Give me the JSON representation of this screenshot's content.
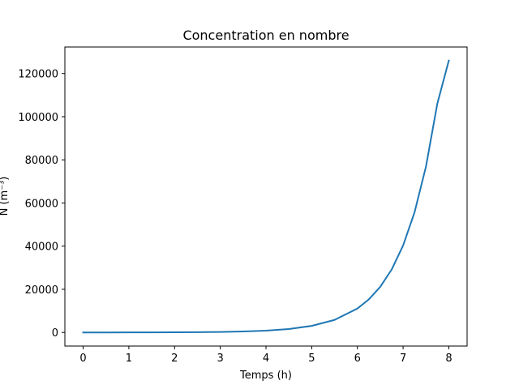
{
  "chart_data": {
    "type": "line",
    "title": "Concentration en nombre",
    "xlabel": "Temps (h)",
    "ylabel": "N (m⁻³)",
    "xlim": [
      -0.4,
      8.4
    ],
    "ylim": [
      -6300,
      132300
    ],
    "xticks": [
      0,
      1,
      2,
      3,
      4,
      5,
      6,
      7,
      8
    ],
    "xtick_labels": [
      "0",
      "1",
      "2",
      "3",
      "4",
      "5",
      "6",
      "7",
      "8"
    ],
    "yticks": [
      0,
      20000,
      40000,
      60000,
      80000,
      100000,
      120000
    ],
    "ytick_labels": [
      "0",
      "20000",
      "40000",
      "60000",
      "80000",
      "100000",
      "120000"
    ],
    "grid": false,
    "series": [
      {
        "color": "#1f77b4",
        "x": [
          0,
          0.5,
          1,
          1.5,
          2,
          2.5,
          3,
          3.5,
          4,
          4.5,
          5,
          5.5,
          6,
          6.25,
          6.5,
          6.75,
          7,
          7.25,
          7.5,
          7.75,
          8
        ],
        "y": [
          5,
          9,
          18,
          33,
          63,
          121,
          230,
          439,
          838,
          1598,
          3048,
          5813,
          11086,
          15308,
          21138,
          29190,
          40309,
          55665,
          76870,
          106154,
          126000
        ]
      }
    ]
  }
}
